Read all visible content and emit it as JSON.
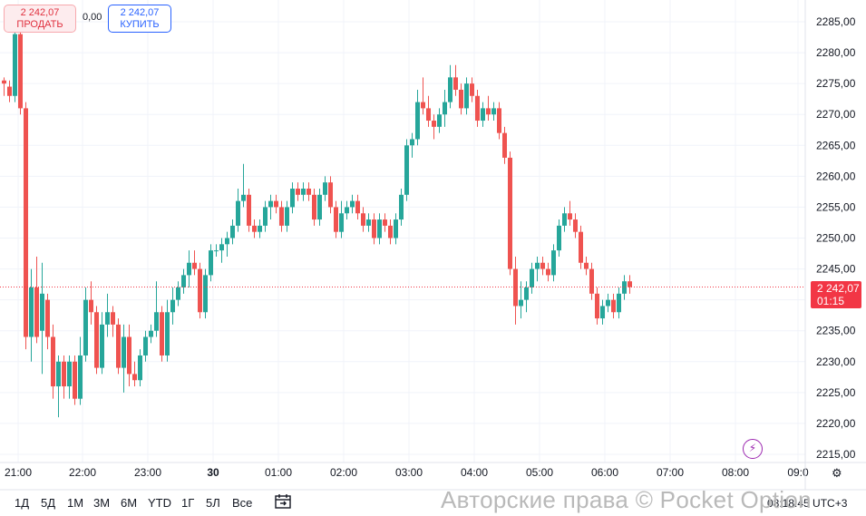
{
  "trade": {
    "sell_price": "2 242,07",
    "sell_label": "ПРОДАТЬ",
    "spread": "0,00",
    "buy_price": "2 242,07",
    "buy_label": "КУПИТЬ"
  },
  "colors": {
    "up": "#26a69a",
    "down": "#ef5350",
    "grid": "#f0f3fa",
    "price_line": "#f23645"
  },
  "price_axis": {
    "ticks": [
      "2285,00",
      "2280,00",
      "2275,00",
      "2270,00",
      "2265,00",
      "2260,00",
      "2255,00",
      "2250,00",
      "2245,00",
      "2240,00",
      "2235,00",
      "2230,00",
      "2225,00",
      "2220,00",
      "2215,00"
    ],
    "current_price": "2 242,07",
    "countdown": "01:15"
  },
  "time_axis": {
    "labels": [
      {
        "text": "21:00",
        "bold": false
      },
      {
        "text": "22:00",
        "bold": false
      },
      {
        "text": "23:00",
        "bold": false
      },
      {
        "text": "30",
        "bold": true
      },
      {
        "text": "01:00",
        "bold": false
      },
      {
        "text": "02:00",
        "bold": false
      },
      {
        "text": "03:00",
        "bold": false
      },
      {
        "text": "04:00",
        "bold": false
      },
      {
        "text": "05:00",
        "bold": false
      },
      {
        "text": "06:00",
        "bold": false
      },
      {
        "text": "07:00",
        "bold": false
      },
      {
        "text": "08:00",
        "bold": false
      },
      {
        "text": "09:0",
        "bold": false
      }
    ]
  },
  "toolbar": {
    "timeframes": [
      "1Д",
      "5Д",
      "1М",
      "3М",
      "6М",
      "YTD",
      "1Г",
      "5Л",
      "Все"
    ],
    "calendar_icon": "calendar-icon",
    "clock": "08:18:45 UTC+3"
  },
  "watermark": "Авторские права © Pocket Option",
  "chart_data": {
    "type": "candlestick",
    "ylim": [
      2213,
      2288
    ],
    "x_start": "20:50",
    "x_interval_minutes": 5,
    "candles": [
      [
        2275.5,
        2276,
        2273,
        2275
      ],
      [
        2274.5,
        2275.5,
        2272,
        2273
      ],
      [
        2273,
        2285,
        2272,
        2283
      ],
      [
        2283,
        2284,
        2270,
        2271
      ],
      [
        2271,
        2272,
        2232,
        2234
      ],
      [
        2234,
        2245,
        2230,
        2242
      ],
      [
        2242,
        2247,
        2233,
        2234
      ],
      [
        2235,
        2246,
        2228,
        2241
      ],
      [
        2240,
        2241,
        2232,
        2234
      ],
      [
        2234,
        2236,
        2224,
        2226
      ],
      [
        2226,
        2231,
        2221,
        2230
      ],
      [
        2230,
        2231,
        2224,
        2226
      ],
      [
        2226,
        2231,
        2224,
        2230
      ],
      [
        2230,
        2231,
        2223,
        2224
      ],
      [
        2224,
        2234,
        2223,
        2231
      ],
      [
        2231,
        2242,
        2230,
        2240
      ],
      [
        2240,
        2243,
        2236,
        2238
      ],
      [
        2238,
        2239,
        2228,
        2229
      ],
      [
        2229,
        2238,
        2228,
        2236
      ],
      [
        2236,
        2241,
        2234,
        2238
      ],
      [
        2238,
        2239,
        2234,
        2236
      ],
      [
        2236,
        2237,
        2228,
        2229
      ],
      [
        2229,
        2236,
        2225,
        2234
      ],
      [
        2234,
        2236,
        2226,
        2228
      ],
      [
        2228,
        2230,
        2226,
        2227
      ],
      [
        2227,
        2232,
        2226,
        2231
      ],
      [
        2231,
        2235,
        2230,
        2234
      ],
      [
        2234,
        2236,
        2233,
        2235
      ],
      [
        2235,
        2243,
        2234,
        2238
      ],
      [
        2238,
        2239,
        2230,
        2231
      ],
      [
        2231,
        2240,
        2230,
        2238
      ],
      [
        2238,
        2242,
        2236,
        2240
      ],
      [
        2240,
        2243,
        2239,
        2242
      ],
      [
        2242,
        2245,
        2241,
        2244
      ],
      [
        2244,
        2248,
        2242,
        2246
      ],
      [
        2246,
        2248,
        2244,
        2245
      ],
      [
        2245,
        2246,
        2237,
        2238
      ],
      [
        2238,
        2245,
        2237,
        2244
      ],
      [
        2244,
        2249,
        2243,
        2248
      ],
      [
        2248,
        2249,
        2247,
        2248
      ],
      [
        2248,
        2250,
        2246,
        2249
      ],
      [
        2249,
        2251,
        2247,
        2250
      ],
      [
        2250,
        2253,
        2249,
        2252
      ],
      [
        2252,
        2258,
        2251,
        2256
      ],
      [
        2256,
        2262,
        2255,
        2257
      ],
      [
        2257,
        2258,
        2251,
        2252
      ],
      [
        2252,
        2253,
        2250,
        2251
      ],
      [
        2251,
        2253,
        2250,
        2252
      ],
      [
        2252,
        2256,
        2251,
        2255
      ],
      [
        2255,
        2257,
        2253,
        2256
      ],
      [
        2256,
        2257,
        2254,
        2255
      ],
      [
        2255,
        2256,
        2251,
        2252
      ],
      [
        2252,
        2256,
        2251,
        2255
      ],
      [
        2255,
        2259,
        2254,
        2258
      ],
      [
        2258,
        2259,
        2256,
        2257
      ],
      [
        2257,
        2259,
        2256,
        2258
      ],
      [
        2258,
        2259,
        2256,
        2257
      ],
      [
        2257,
        2258,
        2252,
        2253
      ],
      [
        2253,
        2258,
        2252,
        2257
      ],
      [
        2257,
        2260,
        2256,
        2259
      ],
      [
        2259,
        2260,
        2254,
        2255
      ],
      [
        2255,
        2256,
        2250,
        2251
      ],
      [
        2251,
        2256,
        2250,
        2254
      ],
      [
        2254,
        2256,
        2253,
        2255
      ],
      [
        2255,
        2257,
        2254,
        2256
      ],
      [
        2256,
        2257,
        2253,
        2254
      ],
      [
        2254,
        2255,
        2251,
        2252
      ],
      [
        2252,
        2254,
        2251,
        2253
      ],
      [
        2253,
        2254,
        2249,
        2250
      ],
      [
        2250,
        2254,
        2249,
        2253
      ],
      [
        2253,
        2254,
        2251,
        2252
      ],
      [
        2252,
        2253,
        2249,
        2250
      ],
      [
        2250,
        2254,
        2249,
        2253
      ],
      [
        2253,
        2258,
        2252,
        2257
      ],
      [
        2257,
        2266,
        2256,
        2265
      ],
      [
        2265,
        2267,
        2263,
        2266
      ],
      [
        2266,
        2274,
        2265,
        2272
      ],
      [
        2272,
        2276,
        2270,
        2271
      ],
      [
        2271,
        2273,
        2268,
        2269
      ],
      [
        2269,
        2270,
        2266,
        2268
      ],
      [
        2268,
        2271,
        2267,
        2270
      ],
      [
        2270,
        2274,
        2268,
        2272
      ],
      [
        2272,
        2278,
        2271,
        2276
      ],
      [
        2276,
        2278,
        2273,
        2274
      ],
      [
        2274,
        2275,
        2270,
        2271
      ],
      [
        2271,
        2276,
        2270,
        2275
      ],
      [
        2275,
        2276,
        2272,
        2273
      ],
      [
        2273,
        2274,
        2268,
        2269
      ],
      [
        2269,
        2272,
        2268,
        2271
      ],
      [
        2271,
        2273,
        2269,
        2270
      ],
      [
        2270,
        2272,
        2269,
        2271
      ],
      [
        2271,
        2272,
        2266,
        2267
      ],
      [
        2267,
        2268,
        2262,
        2263
      ],
      [
        2263,
        2264,
        2244,
        2245
      ],
      [
        2245,
        2247,
        2236,
        2239
      ],
      [
        2239,
        2243,
        2237,
        2240
      ],
      [
        2240,
        2243,
        2238,
        2242
      ],
      [
        2242,
        2246,
        2241,
        2245
      ],
      [
        2245,
        2247,
        2243,
        2246
      ],
      [
        2246,
        2247,
        2244,
        2245
      ],
      [
        2245,
        2246,
        2243,
        2244
      ],
      [
        2244,
        2249,
        2243,
        2248
      ],
      [
        2248,
        2253,
        2247,
        2252
      ],
      [
        2252,
        2255,
        2251,
        2254
      ],
      [
        2254,
        2256,
        2252,
        2253
      ],
      [
        2253,
        2254,
        2250,
        2251
      ],
      [
        2251,
        2252,
        2245,
        2246
      ],
      [
        2246,
        2247,
        2244,
        2245
      ],
      [
        2245,
        2246,
        2240,
        2241
      ],
      [
        2241,
        2242,
        2236,
        2237
      ],
      [
        2237,
        2240,
        2236,
        2239
      ],
      [
        2239,
        2241,
        2238,
        2240
      ],
      [
        2240,
        2241,
        2237,
        2238
      ],
      [
        2238,
        2242,
        2237,
        2241
      ],
      [
        2241,
        2244,
        2240,
        2243
      ],
      [
        2243,
        2244,
        2241,
        2242.07
      ]
    ]
  }
}
